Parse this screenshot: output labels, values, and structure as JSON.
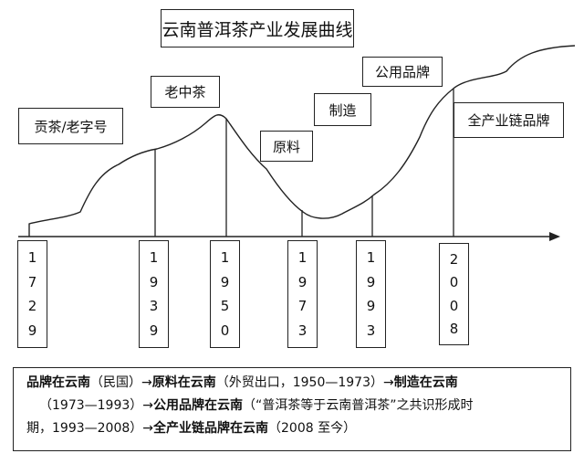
{
  "title": "云南普洱茶产业发展曲线",
  "stages": [
    {
      "label": "贡茶/老字号"
    },
    {
      "label": "老中茶"
    },
    {
      "label": "原料"
    },
    {
      "label": "制造"
    },
    {
      "label": "公用品牌"
    },
    {
      "label": "全产业链品牌"
    }
  ],
  "years": [
    {
      "digits": [
        "1",
        "7",
        "2",
        "9"
      ]
    },
    {
      "digits": [
        "1",
        "9",
        "3",
        "9"
      ]
    },
    {
      "digits": [
        "1",
        "9",
        "5",
        "0"
      ]
    },
    {
      "digits": [
        "1",
        "9",
        "7",
        "3"
      ]
    },
    {
      "digits": [
        "1",
        "9",
        "9",
        "3"
      ]
    },
    {
      "digits": [
        "2",
        "0",
        "0",
        "8"
      ]
    }
  ],
  "summary": {
    "line1_bold1": "品牌在云南",
    "line1_t1": "（民国）→",
    "line1_bold2": "原料在云南",
    "line1_t2": "（外贸出口，1950—1973）→",
    "line1_bold3": "制造在云南",
    "line2_t1": "（1973—1993）→",
    "line2_bold1": "公用品牌在云南",
    "line2_t2": "（“普洱茶等于云南普洱茶”之共识形成时",
    "line3_t1": "期，1993—2008）→",
    "line3_bold1": "全产业链品牌在云南",
    "line3_t2": "（2008 至今）"
  }
}
